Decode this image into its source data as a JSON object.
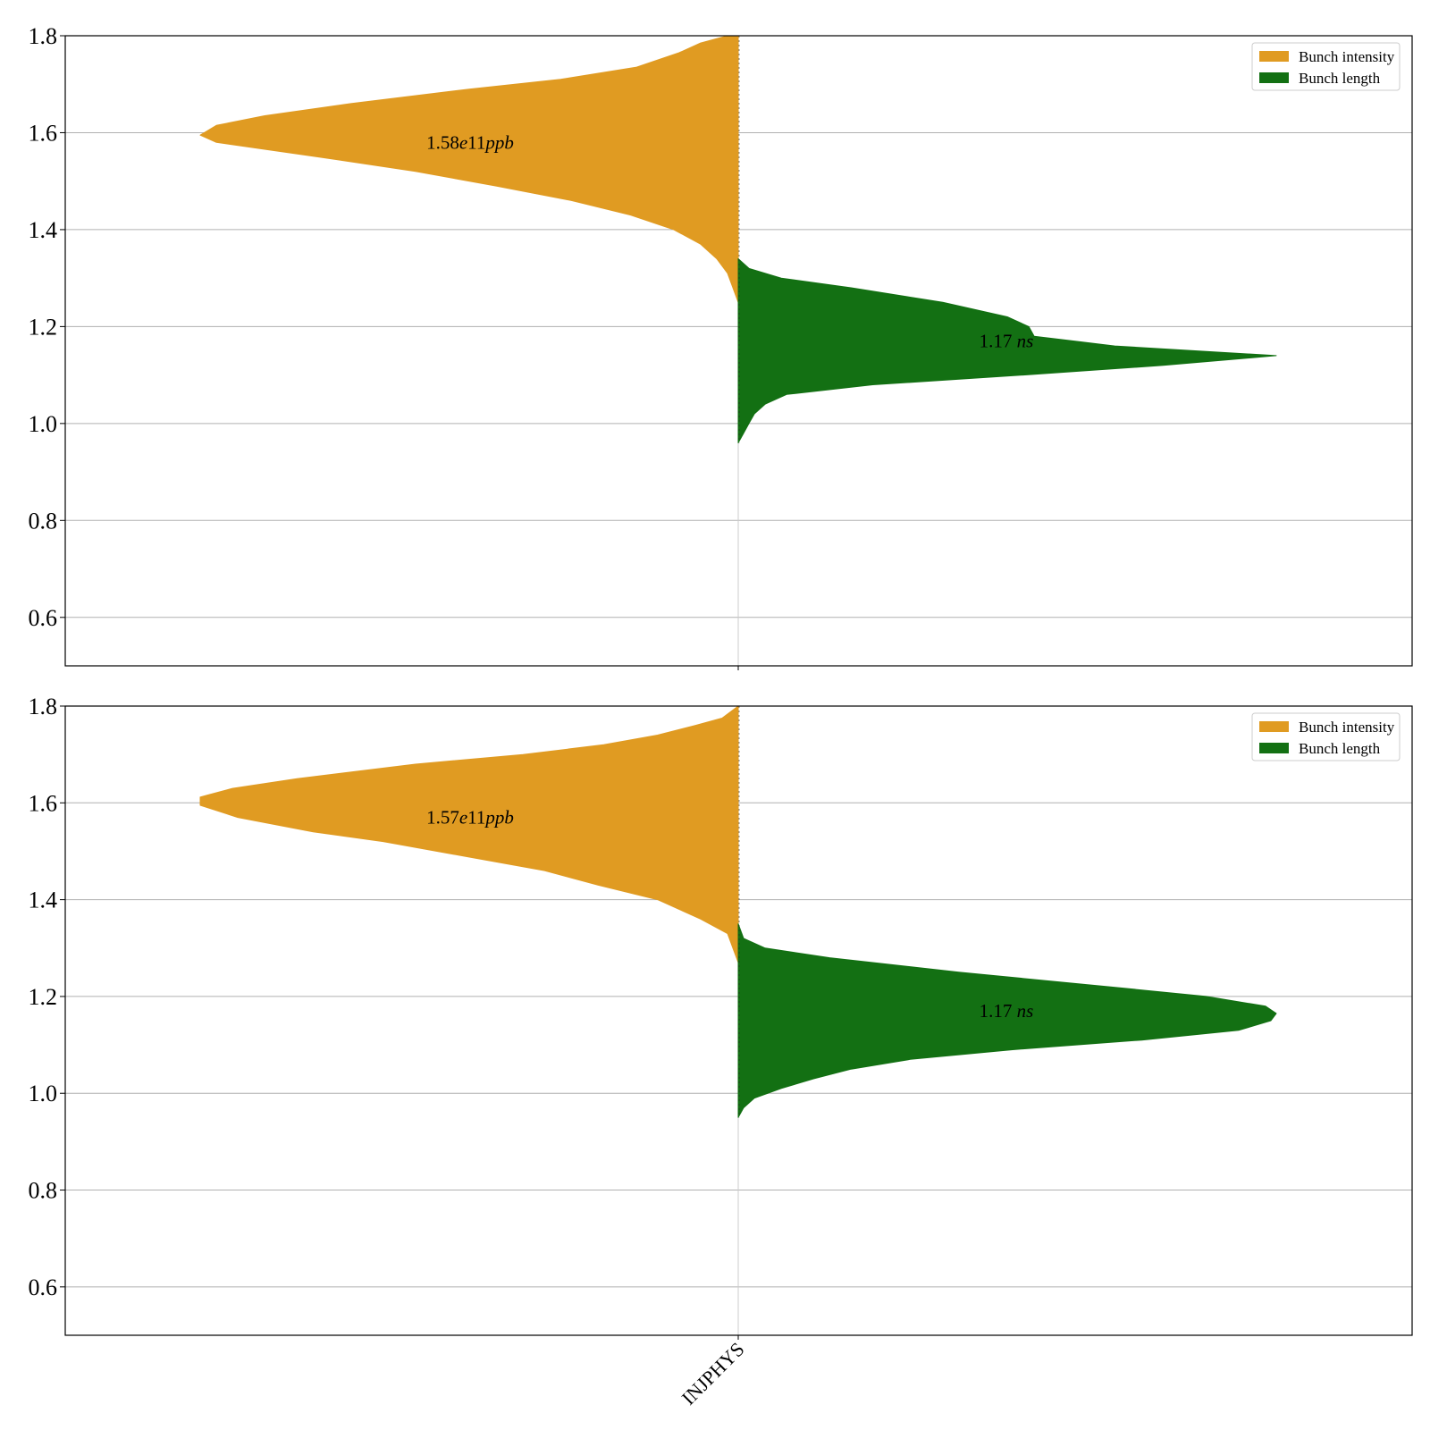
{
  "chart_data": [
    {
      "type": "violin",
      "categories": [
        "INJPHYS"
      ],
      "ylim": [
        0.5,
        1.8
      ],
      "yticks": [
        "0.6",
        "0.8",
        "1.0",
        "1.2",
        "1.4",
        "1.6",
        "1.8"
      ],
      "grid": true,
      "legend_position": "upper right",
      "series": [
        {
          "name": "Bunch intensity",
          "color": "#e09b22",
          "side": "left",
          "annotation": "1.58e11ppb",
          "annotation_parts": [
            {
              "t": "1.58",
              "i": false
            },
            {
              "t": "e",
              "i": true
            },
            {
              "t": "11",
              "i": false
            },
            {
              "t": "ppb",
              "i": true
            }
          ],
          "annotation_y": 1.58,
          "profile": [
            [
              1.25,
              0.0
            ],
            [
              1.28,
              0.01
            ],
            [
              1.31,
              0.02
            ],
            [
              1.34,
              0.04
            ],
            [
              1.37,
              0.07
            ],
            [
              1.4,
              0.12
            ],
            [
              1.43,
              0.2
            ],
            [
              1.46,
              0.31
            ],
            [
              1.49,
              0.45
            ],
            [
              1.52,
              0.6
            ],
            [
              1.55,
              0.78
            ],
            [
              1.58,
              0.97
            ],
            [
              1.595,
              1.0
            ],
            [
              1.615,
              0.97
            ],
            [
              1.635,
              0.88
            ],
            [
              1.66,
              0.72
            ],
            [
              1.69,
              0.5
            ],
            [
              1.71,
              0.33
            ],
            [
              1.735,
              0.19
            ],
            [
              1.765,
              0.11
            ],
            [
              1.785,
              0.07
            ],
            [
              1.8,
              0.02
            ]
          ]
        },
        {
          "name": "Bunch length",
          "color": "#137013",
          "side": "right",
          "annotation": "1.17 ns",
          "annotation_parts": [
            {
              "t": "1.17 ",
              "i": false
            },
            {
              "t": "ns",
              "i": true
            }
          ],
          "annotation_y": 1.17,
          "profile": [
            [
              0.96,
              0.0
            ],
            [
              0.98,
              0.01
            ],
            [
              1.0,
              0.02
            ],
            [
              1.02,
              0.03
            ],
            [
              1.04,
              0.05
            ],
            [
              1.06,
              0.09
            ],
            [
              1.08,
              0.25
            ],
            [
              1.1,
              0.53
            ],
            [
              1.12,
              0.79
            ],
            [
              1.14,
              1.0
            ],
            [
              1.16,
              0.7
            ],
            [
              1.18,
              0.55
            ],
            [
              1.2,
              0.54
            ],
            [
              1.22,
              0.5
            ],
            [
              1.25,
              0.38
            ],
            [
              1.28,
              0.21
            ],
            [
              1.3,
              0.08
            ],
            [
              1.32,
              0.02
            ],
            [
              1.34,
              0.0
            ]
          ]
        }
      ]
    },
    {
      "type": "violin",
      "categories": [
        "INJPHYS"
      ],
      "ylim": [
        0.5,
        1.8
      ],
      "yticks": [
        "0.6",
        "0.8",
        "1.0",
        "1.2",
        "1.4",
        "1.6",
        "1.8"
      ],
      "grid": true,
      "legend_position": "upper right",
      "series": [
        {
          "name": "Bunch intensity",
          "color": "#e09b22",
          "side": "left",
          "annotation": "1.57e11ppb",
          "annotation_parts": [
            {
              "t": "1.57",
              "i": false
            },
            {
              "t": "e",
              "i": true
            },
            {
              "t": "11",
              "i": false
            },
            {
              "t": "ppb",
              "i": true
            }
          ],
          "annotation_y": 1.57,
          "profile": [
            [
              1.27,
              0.0
            ],
            [
              1.3,
              0.01
            ],
            [
              1.33,
              0.02
            ],
            [
              1.36,
              0.07
            ],
            [
              1.38,
              0.11
            ],
            [
              1.4,
              0.15
            ],
            [
              1.43,
              0.26
            ],
            [
              1.46,
              0.36
            ],
            [
              1.49,
              0.51
            ],
            [
              1.52,
              0.66
            ],
            [
              1.54,
              0.79
            ],
            [
              1.57,
              0.93
            ],
            [
              1.595,
              1.0
            ],
            [
              1.612,
              1.0
            ],
            [
              1.63,
              0.94
            ],
            [
              1.65,
              0.82
            ],
            [
              1.68,
              0.6
            ],
            [
              1.7,
              0.4
            ],
            [
              1.72,
              0.25
            ],
            [
              1.74,
              0.15
            ],
            [
              1.76,
              0.08
            ],
            [
              1.775,
              0.03
            ],
            [
              1.8,
              0.0
            ]
          ]
        },
        {
          "name": "Bunch length",
          "color": "#137013",
          "side": "right",
          "annotation": "1.17 ns",
          "annotation_parts": [
            {
              "t": "1.17 ",
              "i": false
            },
            {
              "t": "ns",
              "i": true
            }
          ],
          "annotation_y": 1.17,
          "profile": [
            [
              0.95,
              0.0
            ],
            [
              0.97,
              0.01
            ],
            [
              0.99,
              0.03
            ],
            [
              1.01,
              0.08
            ],
            [
              1.03,
              0.14
            ],
            [
              1.05,
              0.21
            ],
            [
              1.07,
              0.32
            ],
            [
              1.09,
              0.51
            ],
            [
              1.11,
              0.75
            ],
            [
              1.13,
              0.93
            ],
            [
              1.15,
              0.99
            ],
            [
              1.165,
              1.0
            ],
            [
              1.18,
              0.98
            ],
            [
              1.2,
              0.87
            ],
            [
              1.22,
              0.69
            ],
            [
              1.25,
              0.41
            ],
            [
              1.28,
              0.17
            ],
            [
              1.3,
              0.05
            ],
            [
              1.32,
              0.01
            ],
            [
              1.35,
              0.0
            ]
          ]
        }
      ]
    }
  ]
}
